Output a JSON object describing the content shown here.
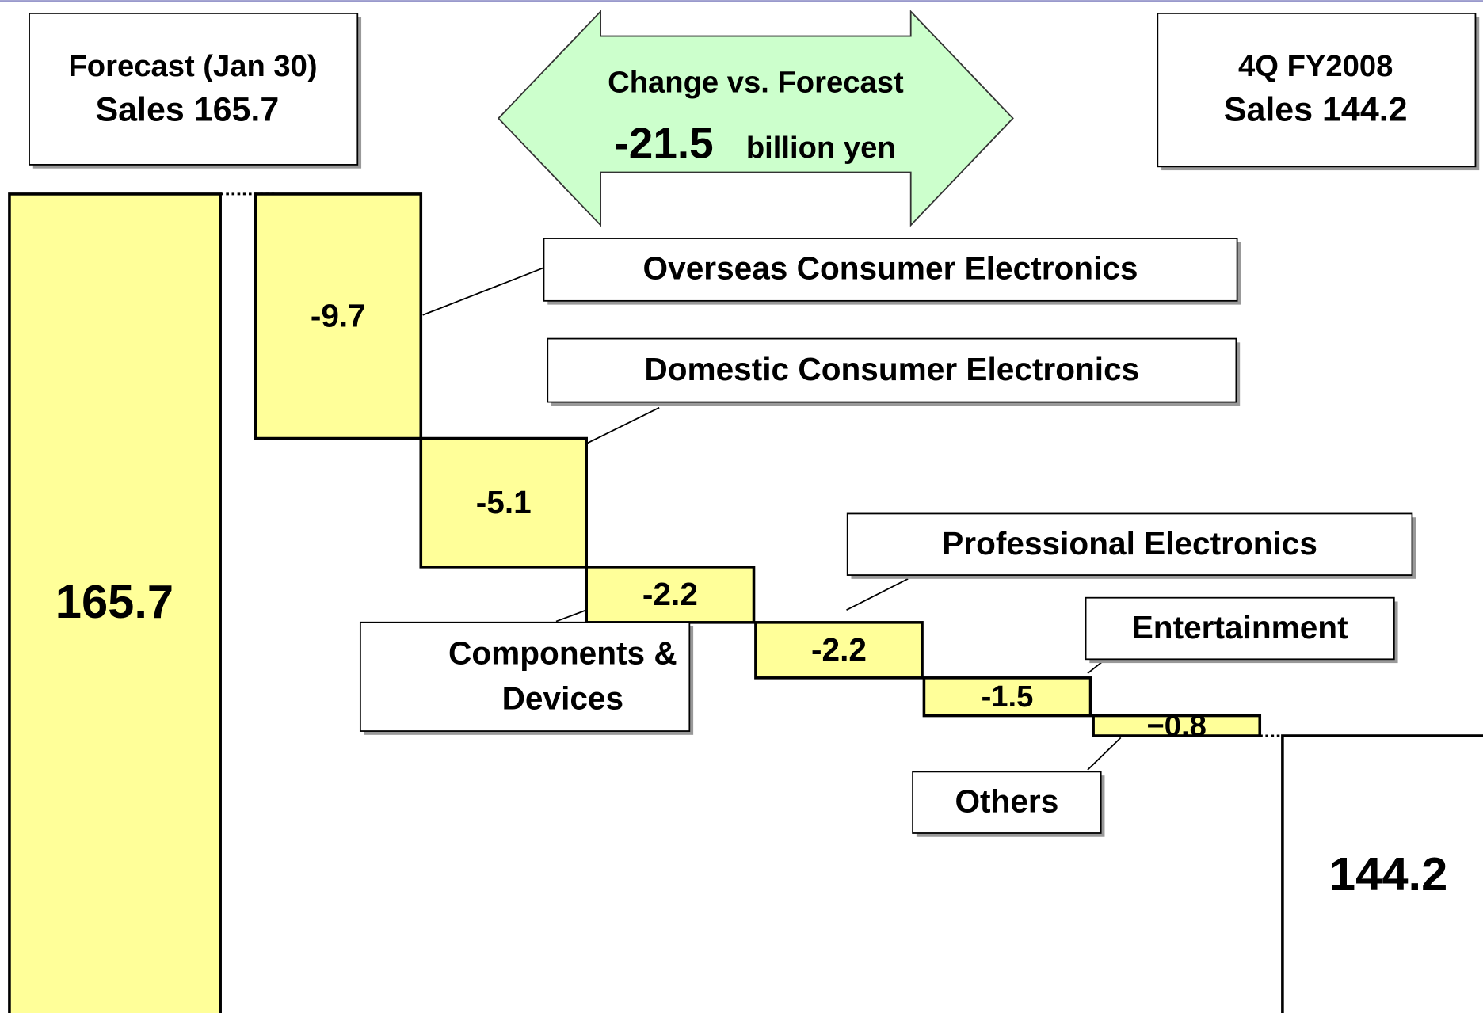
{
  "chart_data": {
    "type": "waterfall",
    "start_box": {
      "line1": "Forecast (Jan 30)",
      "line2": "Sales 165.7"
    },
    "end_box": {
      "line1": "4Q FY2008",
      "line2": "Sales 144.2"
    },
    "change": {
      "heading": "Change vs. Forecast",
      "value": -21.5,
      "unit": "billion yen"
    },
    "start_value": 165.7,
    "end_value": 144.2,
    "categories": [
      "Overseas Consumer Electronics",
      "Domestic Consumer Electronics",
      "Components & Devices",
      "Professional Electronics",
      "Entertainment",
      "Others"
    ],
    "values": [
      -9.7,
      -5.1,
      -2.2,
      -2.2,
      -1.5,
      -0.8
    ],
    "value_labels": [
      "-9.7",
      "-5.1",
      "-2.2",
      "-2.2",
      "-1.5",
      "−0.8"
    ],
    "color": "#ffff99",
    "arrow_color": "#ccffcc"
  }
}
